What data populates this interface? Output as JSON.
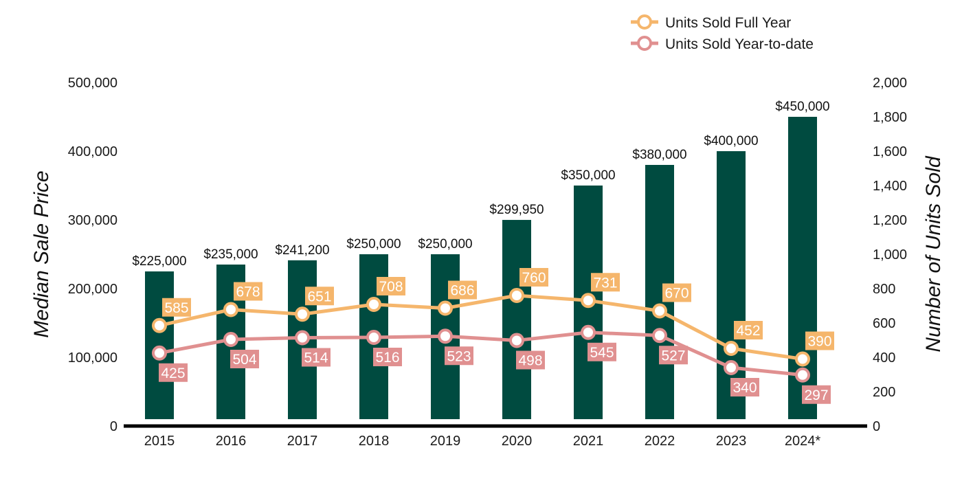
{
  "chart_data": {
    "type": "bar",
    "categories": [
      "2015",
      "2016",
      "2017",
      "2018",
      "2019",
      "2020",
      "2021",
      "2022",
      "2023",
      "2024*"
    ],
    "bar_series": {
      "axis": "left",
      "values": [
        225000,
        235000,
        241200,
        250000,
        250000,
        299950,
        350000,
        380000,
        400000,
        450000
      ],
      "labels": [
        "$225,000",
        "$235,000",
        "$241,200",
        "$250,000",
        "$250,000",
        "$299,950",
        "$350,000",
        "$380,000",
        "$400,000",
        "$450,000"
      ],
      "color": "#004b40"
    },
    "line_series": [
      {
        "name": "Units Sold Full Year",
        "type": "line",
        "axis": "right",
        "values": [
          585,
          678,
          651,
          708,
          686,
          760,
          731,
          670,
          452,
          390
        ],
        "labels": [
          "585",
          "678",
          "651",
          "708",
          "686",
          "760",
          "731",
          "670",
          "452",
          "390"
        ],
        "color": "#f5b66c",
        "label_position": "above"
      },
      {
        "name": "Units Sold Year-to-date",
        "type": "line",
        "axis": "right",
        "values": [
          425,
          504,
          514,
          516,
          523,
          498,
          545,
          527,
          340,
          297
        ],
        "labels": [
          "425",
          "504",
          "514",
          "516",
          "523",
          "498",
          "545",
          "527",
          "340",
          "297"
        ],
        "color": "#e09090",
        "label_position": "below"
      }
    ],
    "y_left": {
      "label": "Median Sale Price",
      "range": [
        0,
        500000
      ],
      "ticks": [
        "0",
        "100,000",
        "200,000",
        "300,000",
        "400,000",
        "500,000"
      ]
    },
    "y_right": {
      "label": "Number of Units Sold",
      "range": [
        0,
        2000
      ],
      "ticks": [
        "0",
        "200",
        "400",
        "600",
        "800",
        "1,000",
        "1,200",
        "1,400",
        "1,600",
        "1,800",
        "2,000"
      ]
    },
    "grid": false,
    "legend_position": "top-right"
  }
}
